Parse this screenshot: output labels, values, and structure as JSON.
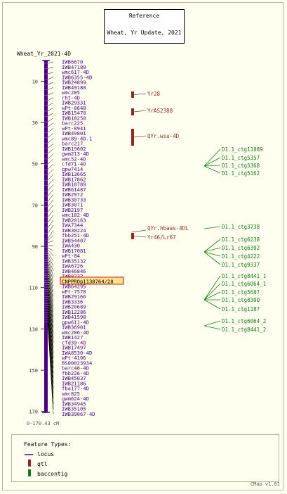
{
  "reference": {
    "title": "Reference",
    "subtitle": "Wheat, Yr Update, 2021"
  },
  "map": {
    "name": "Wheat_Yr_2021-4D",
    "range_label": "0-170.43 cM",
    "min": 0,
    "max": 170.43,
    "ticks": [
      10,
      30,
      50,
      70,
      90,
      110,
      130,
      150,
      170
    ]
  },
  "markers": [
    "IWB6670",
    "IWB47180",
    "wmc617-4D",
    "IWB6355-4D",
    "IWB24899",
    "IWB49180",
    "wmc285",
    "rht-4D",
    "IWB29331",
    "wPt-0648",
    "IWB15470",
    "IWB18250",
    "barc225",
    "wPt-0941",
    "IWB49801",
    "wmc89-4D.1",
    "barc217",
    "IWB19002",
    "gwm213-4D",
    "wmc52-4D",
    "cfd71-4D",
    "gpw7414",
    "IWB13665",
    "IWB17862",
    "IWB18789",
    "IWB61487",
    "IWB2972",
    "IWB30733",
    "IWB3071",
    "IWB2197",
    "wmc182-4D",
    "IWB20163",
    "IWA7344",
    "IWB30224",
    "fbb251-4D",
    "IWB54407",
    "IWA430",
    "IWB17081",
    "wPt-84",
    "IWB35132",
    "IWA6726",
    "IWB46846",
    "IWB8232",
    "CNPPROp1138764/28",
    "IWB64295",
    "wPt-7578",
    "IWB29166",
    "IWB3336",
    "IWB20689",
    "IWB12286",
    "IWB41590",
    "gpw611-4D",
    "IWB36901",
    "wmc206-4D",
    "IWB1427",
    "cfd39-4D",
    "IWB17497",
    "IWA8530-4D",
    "wPt-4106",
    "BS00023934",
    "barc48-4D",
    "fbb226-4D",
    "IWB45037",
    "IWB21186",
    "fba177-4D",
    "wmc825",
    "gwm624-4D",
    "IWB34945",
    "IWB35105",
    "IWB39067-4D"
  ],
  "highlighted_marker": "CNPPROp1138764/28",
  "qtls": [
    "Yr28",
    "YrAS2388",
    "QYr.wsu-4D",
    "QYr.hbaas-4DL",
    "Yr46/Lr67"
  ],
  "contigs_group1": [
    "D1.1_ctg11889",
    "D1.1_ctg5357",
    "D1.1_ctg5368",
    "D1.1_ctg5162"
  ],
  "contigs_group2": [
    "D1.1_ctg3738"
  ],
  "contigs_group3": [
    "D1.1_ctg6238",
    "D1.1_ctg6392",
    "D1.1_ctg4222",
    "D1.1_ctg9337"
  ],
  "contigs_group4": [
    "D1.1_ctg8441_1",
    "D1.1_ctg6064_1",
    "D1.1_ctg5687",
    "D1.1_ctg8300",
    "D1.1_ctg1187"
  ],
  "contigs_group5": [
    "D1.1_ctg6064_2",
    "D1.1_ctg8441_2"
  ],
  "colors": {
    "locus": "#4b0082",
    "qtl": "#8b2a1e",
    "contig": "#1a7a1a",
    "highlight_bg": "#ffe58a",
    "highlight_border": "#d00000",
    "contig_line": "#1a7a1a"
  },
  "legend": {
    "title": "Feature Types:",
    "items": [
      {
        "label": "locus",
        "icon": "locus-line-icon"
      },
      {
        "label": "qtl",
        "icon": "qtl-bar-icon"
      },
      {
        "label": "baccontig",
        "icon": "contig-bar-icon"
      }
    ]
  },
  "footer": "CMap v1.01"
}
